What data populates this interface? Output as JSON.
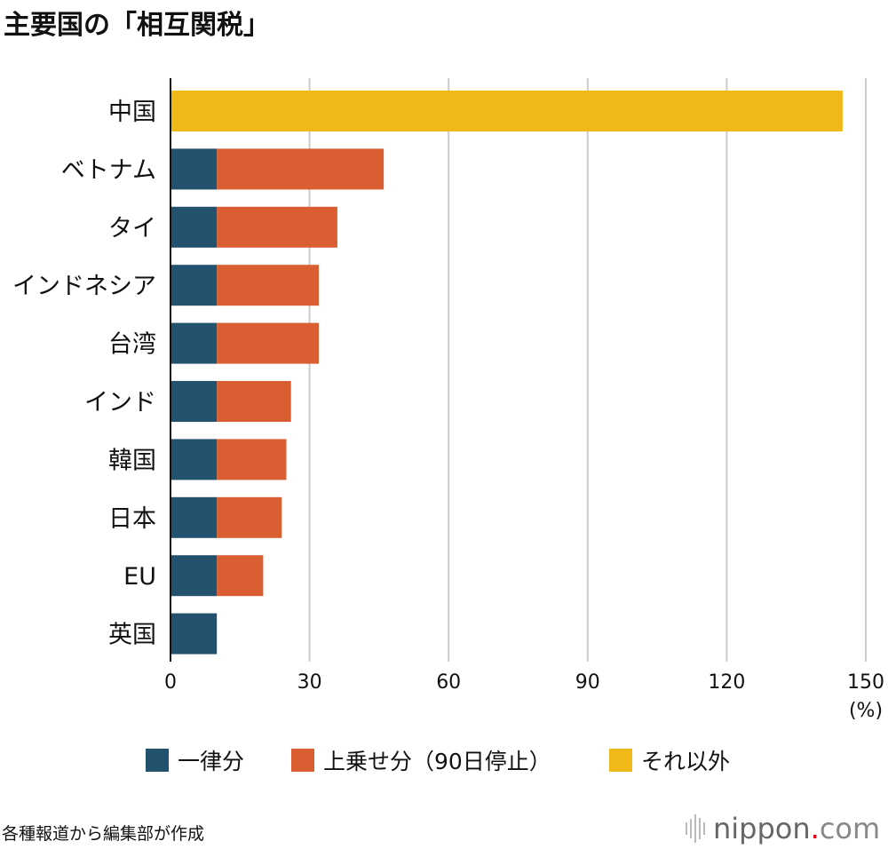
{
  "chart_data": {
    "type": "bar",
    "orientation": "horizontal",
    "stacked": true,
    "title": "主要国の「相互関税」",
    "categories": [
      "中国",
      "ベトナム",
      "タイ",
      "インドネシア",
      "台湾",
      "インド",
      "韓国",
      "日本",
      "EU",
      "英国"
    ],
    "series": [
      {
        "name": "一律分",
        "color": "#23526f",
        "values": [
          0,
          10,
          10,
          10,
          10,
          10,
          10,
          10,
          10,
          10
        ]
      },
      {
        "name": "上乗せ分（90日停止）",
        "color": "#d95f33",
        "values": [
          0,
          36,
          26,
          22,
          22,
          16,
          15,
          14,
          10,
          0
        ]
      },
      {
        "name": "それ以外",
        "color": "#f0b917",
        "values": [
          145,
          0,
          0,
          0,
          0,
          0,
          0,
          0,
          0,
          0
        ]
      }
    ],
    "xlim": [
      0,
      150
    ],
    "xticks": [
      "0",
      "30",
      "60",
      "90",
      "120",
      "150"
    ],
    "xunit": "(%)",
    "grid": true,
    "legend_position": "bottom"
  },
  "footer": {
    "source": "各種報道から編集部が作成",
    "logo_main": "nippon",
    "logo_dot": ".",
    "logo_tail": "com",
    "logo_dot_color": "#e60012"
  }
}
